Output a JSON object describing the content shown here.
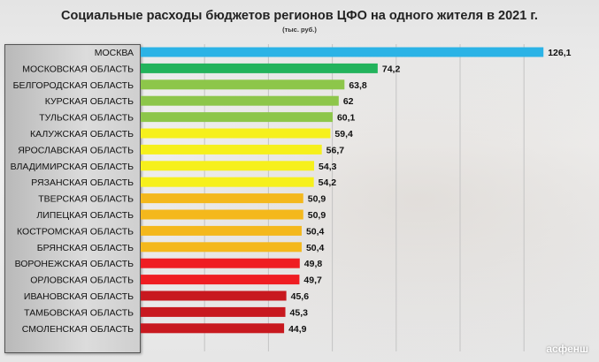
{
  "chart_data": {
    "type": "bar",
    "orientation": "horizontal",
    "title": "Социальные расходы бюджетов регионов ЦФО на одного жителя в 2021 г.",
    "subtitle": "(тыс. руб.)",
    "xlim": [
      0,
      130
    ],
    "grid": true,
    "categories": [
      "МОСКВА",
      "МОСКОВСКАЯ ОБЛАСТЬ",
      "БЕЛГОРОДСКАЯ ОБЛАСТЬ",
      "КУРСКАЯ ОБЛАСТЬ",
      "ТУЛЬСКАЯ ОБЛАСТЬ",
      "КАЛУЖСКАЯ ОБЛАСТЬ",
      "ЯРОСЛАВСКАЯ ОБЛАСТЬ",
      "ВЛАДИМИРСКАЯ ОБЛАСТЬ",
      "РЯЗАНСКАЯ ОБЛАСТЬ",
      "ТВЕРСКАЯ ОБЛАСТЬ",
      "ЛИПЕЦКАЯ ОБЛАСТЬ",
      "КОСТРОМСКАЯ ОБЛАСТЬ",
      "БРЯНСКАЯ ОБЛАСТЬ",
      "ВОРОНЕЖСКАЯ ОБЛАСТЬ",
      "ОРЛОВСКАЯ ОБЛАСТЬ",
      "ИВАНОВСКАЯ ОБЛАСТЬ",
      "ТАМБОВСКАЯ ОБЛАСТЬ",
      "СМОЛЕНСКАЯ ОБЛАСТЬ"
    ],
    "values": [
      126.1,
      74.2,
      63.8,
      62,
      60.1,
      59.4,
      56.7,
      54.3,
      54.2,
      50.9,
      50.9,
      50.4,
      50.4,
      49.8,
      49.7,
      45.6,
      45.3,
      44.9
    ],
    "value_labels": [
      "126,1",
      "74,2",
      "63,8",
      "62",
      "60,1",
      "59,4",
      "56,7",
      "54,3",
      "54,2",
      "50,9",
      "50,9",
      "50,4",
      "50,4",
      "49,8",
      "49,7",
      "45,6",
      "45,3",
      "44,9"
    ],
    "colors": [
      "#2bb3e6",
      "#22b35c",
      "#8dc64a",
      "#8dc64a",
      "#8dc64a",
      "#f6f01c",
      "#f6f01c",
      "#f6f01c",
      "#f6f01c",
      "#f4b81c",
      "#f4b81c",
      "#f4b81c",
      "#f4b81c",
      "#ef1d22",
      "#ef1d22",
      "#c8191f",
      "#c8191f",
      "#c8191f"
    ]
  },
  "watermark": "асфенш"
}
